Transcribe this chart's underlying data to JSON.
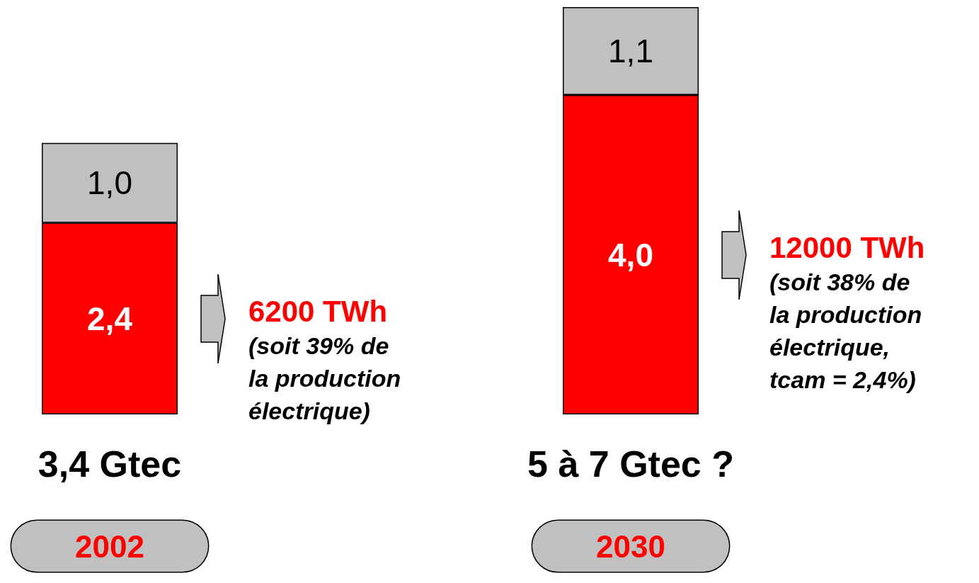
{
  "chart_data": {
    "type": "bar",
    "stacked": true,
    "categories": [
      "2002",
      "2030"
    ],
    "ylim": [
      0,
      5.1
    ],
    "series": [
      {
        "color": "#ff0000",
        "values": [
          2.4,
          4.0
        ],
        "value_labels": [
          "2,4",
          "4,0"
        ]
      },
      {
        "color": "#c0c0c0",
        "values": [
          1.0,
          1.1
        ],
        "value_labels": [
          "1,0",
          "1,1"
        ]
      }
    ],
    "totals": [
      "3,4 Gtec",
      "5 à 7 Gtec ?"
    ],
    "annotations": [
      "6200 TWh\n(soit 39% de\nla production\nélectrique)",
      "12000 TWh\n(soit 38% de\nla production\nélectrique,\ntcam = 2,4%)"
    ]
  }
}
